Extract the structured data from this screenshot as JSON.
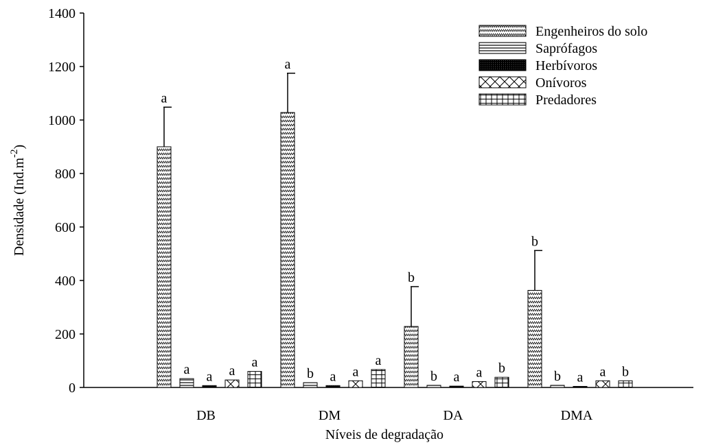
{
  "chart_data": {
    "type": "bar",
    "categories": [
      "DB",
      "DM",
      "DA",
      "DMA"
    ],
    "xlabel": "Níveis de degradação",
    "ylabel_parts": [
      "Densidade (Ind.m",
      "-2",
      ")"
    ],
    "ylim": [
      0,
      1400
    ],
    "yticks": [
      0,
      200,
      400,
      600,
      800,
      1000,
      1200,
      1400
    ],
    "legend": "top-right",
    "series": [
      {
        "name": "Engenheiros do solo",
        "pattern": "zigzag",
        "values": [
          900,
          1028,
          228,
          363
        ],
        "errors": [
          148,
          147,
          149,
          149
        ],
        "labels": [
          "a",
          "a",
          "b",
          "b"
        ]
      },
      {
        "name": "Saprófagos",
        "pattern": "horizontal",
        "values": [
          33,
          18,
          8,
          8
        ],
        "labels": [
          "a",
          "b",
          "b",
          "b"
        ]
      },
      {
        "name": "Herbívoros",
        "pattern": "dots",
        "values": [
          7,
          7,
          5,
          4
        ],
        "labels": [
          "a",
          "a",
          "a",
          "a"
        ]
      },
      {
        "name": "Onívoros",
        "pattern": "cross",
        "values": [
          28,
          25,
          22,
          25
        ],
        "labels": [
          "a",
          "a",
          "a",
          "a"
        ]
      },
      {
        "name": "Predadores",
        "pattern": "brick",
        "values": [
          60,
          67,
          38,
          25
        ],
        "labels": [
          "a",
          "a",
          "b",
          "b"
        ]
      }
    ]
  }
}
